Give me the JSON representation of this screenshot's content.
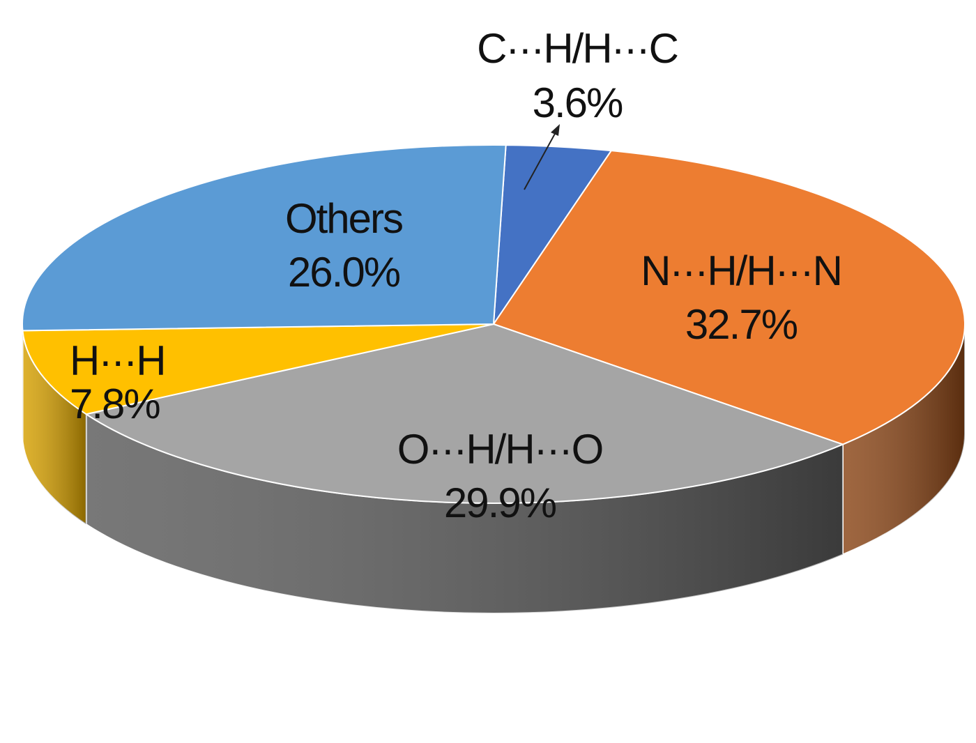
{
  "chart_data": {
    "type": "pie",
    "style": "3d",
    "title": "",
    "start_angle_deg": 0,
    "direction": "clockwise",
    "slices": [
      {
        "label": "C···H/H···C",
        "value": 3.6,
        "value_label": "3.6%",
        "color": "#4472C4",
        "side_color": "#2F528F",
        "callout": true
      },
      {
        "label": "N···H/H···N",
        "value": 32.7,
        "value_label": "32.7%",
        "color": "#ED7D31",
        "side_color": "#8A4516"
      },
      {
        "label": "O···H/H···O",
        "value": 29.9,
        "value_label": "29.9%",
        "color": "#A5A5A5",
        "side_color": "#5A5A5A"
      },
      {
        "label": "H···H",
        "value": 7.8,
        "value_label": "7.8%",
        "color": "#FFC000",
        "side_color": "#D6A000"
      },
      {
        "label": "Others",
        "value": 26.0,
        "value_label": "26.0%",
        "color": "#5B9BD5",
        "side_color": "#3A6EA5"
      }
    ]
  }
}
